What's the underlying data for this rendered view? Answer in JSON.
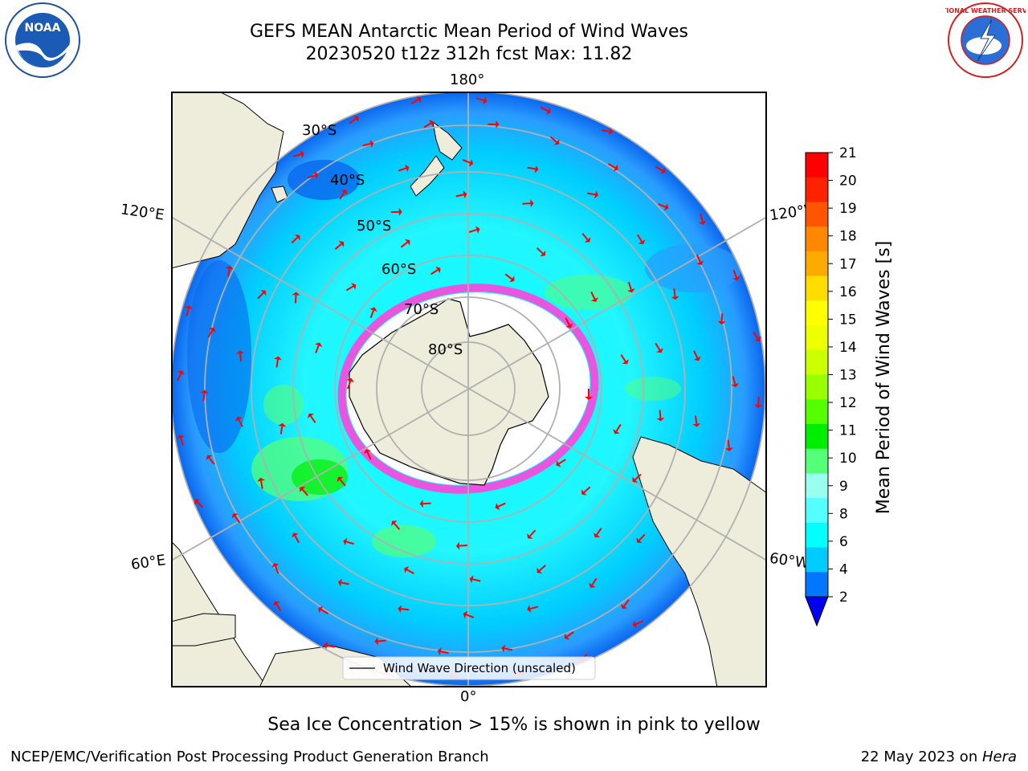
{
  "title": {
    "line1": "GEFS MEAN Antarctic Mean Period of Wind Waves",
    "line2": "20230520 t12z 312h fcst   Max: 11.82"
  },
  "map": {
    "projection": "south-polar-stereographic",
    "meridian_labels": {
      "top": "180°",
      "upper_left": "120°E",
      "upper_right": "120°W",
      "lower_left": "60°E",
      "lower_right": "60°W",
      "bottom": "0°"
    },
    "latitude_labels": [
      "30°S",
      "40°S",
      "50°S",
      "60°S",
      "70°S",
      "80°S"
    ],
    "legend_label": "Wind Wave Direction (unscaled)",
    "colors": {
      "land": "#eeecdb",
      "ice_edge": "#ff44dd",
      "ice_interior": "#ffffff",
      "arrow": "#ff0000",
      "grid": "#b0b0b0"
    }
  },
  "colorbar": {
    "label": "Mean Period of Wind Waves [s]",
    "min": 2,
    "max": 21,
    "tick_labels": [
      "2",
      "4",
      "6",
      "8",
      "9",
      "10",
      "11",
      "12",
      "13",
      "14",
      "15",
      "16",
      "17",
      "18",
      "19",
      "20",
      "21"
    ],
    "colors": [
      "#0077ff",
      "#00ccff",
      "#00ffff",
      "#55ffff",
      "#99ffee",
      "#55ff77",
      "#00ee00",
      "#55ff00",
      "#99ff00",
      "#ccff00",
      "#eeff00",
      "#ffff00",
      "#ffdd00",
      "#ffaa00",
      "#ff8800",
      "#ff5500",
      "#ff2200",
      "#ff0000"
    ],
    "underflow_color": "#0000ee"
  },
  "caption": "Sea Ice Concentration > 15% is shown in pink to yellow",
  "footer": {
    "left": "NCEP/EMC/Verification Post Processing Product Generation Branch",
    "right_prefix": "22 May 2023 on ",
    "right_machine": "Hera"
  },
  "logos": {
    "left": "NOAA",
    "right": "NATIONAL WEATHER SERVICE"
  }
}
